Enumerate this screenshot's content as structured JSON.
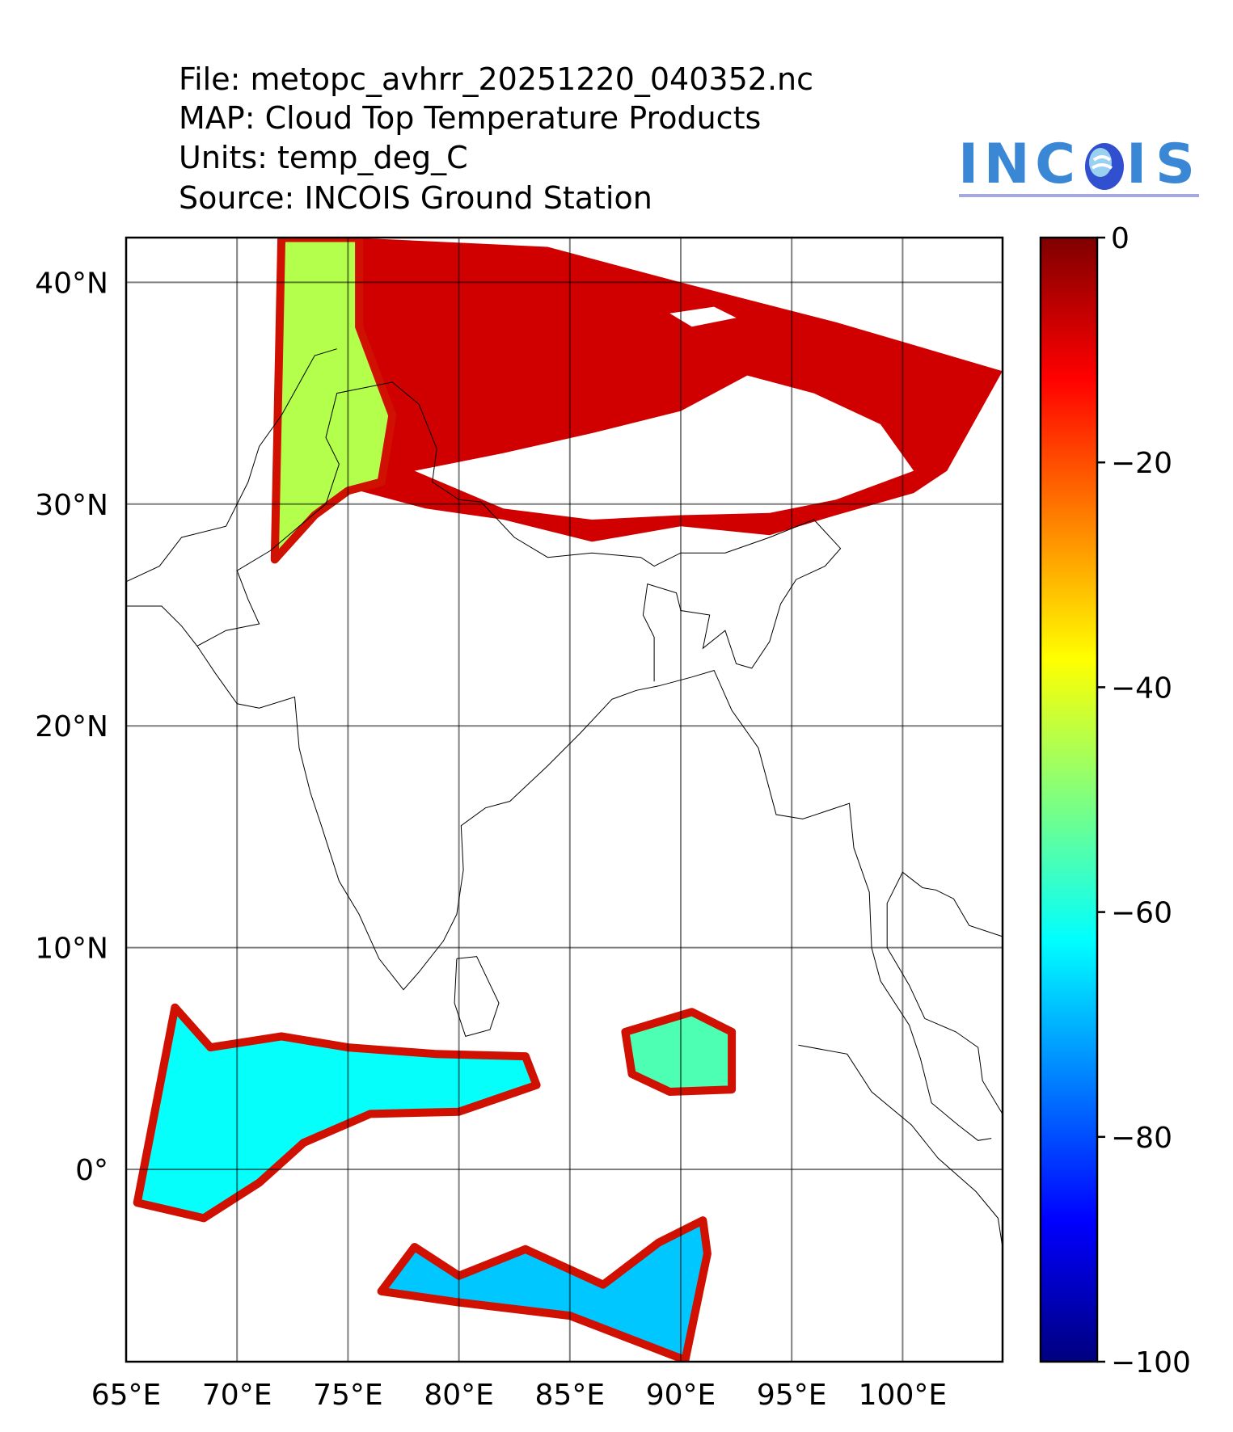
{
  "header": {
    "file": "File: metopc_avhrr_20251220_040352.nc",
    "map": "MAP: Cloud Top Temperature Products",
    "units": "Units: temp_deg_C",
    "source": "Source: INCOIS Ground Station"
  },
  "logo": {
    "text": "INCOIS",
    "color": "#3a87d6"
  },
  "chart_data": {
    "type": "heatmap",
    "title": "Cloud Top Temperature Products",
    "units": "temp_deg_C",
    "lon_range": [
      65,
      104.5
    ],
    "lat_range": [
      -8.7,
      42
    ],
    "lon_ticks": [
      65,
      70,
      75,
      80,
      85,
      90,
      95,
      100
    ],
    "lon_tick_labels": [
      "65°E",
      "70°E",
      "75°E",
      "80°E",
      "85°E",
      "90°E",
      "95°E",
      "100°E"
    ],
    "lat_ticks": [
      0,
      10,
      20,
      30,
      40
    ],
    "lat_tick_labels": [
      "0°",
      "10°N",
      "20°N",
      "30°N",
      "40°N"
    ],
    "grid": true,
    "colorbar": {
      "range": [
        -100,
        0
      ],
      "ticks": [
        0,
        -20,
        -40,
        -60,
        -80,
        -100
      ],
      "tick_labels": [
        "0",
        "−20",
        "−40",
        "−60",
        "−80",
        "−100"
      ],
      "colormap": "jet",
      "placement": "right"
    },
    "cloud_regions": [
      {
        "name": "north-swath-warm",
        "temp": -8,
        "poly": [
          [
            75.5,
            42
          ],
          [
            84,
            41.6
          ],
          [
            90,
            40
          ],
          [
            97,
            38.2
          ],
          [
            104.5,
            36
          ],
          [
            102,
            31.5
          ],
          [
            100.5,
            30.5
          ],
          [
            97,
            29.5
          ],
          [
            94,
            28.6
          ],
          [
            90,
            29
          ],
          [
            86,
            28.3
          ],
          [
            82,
            29.3
          ],
          [
            78.5,
            29.8
          ],
          [
            75.5,
            30.6
          ]
        ]
      },
      {
        "name": "north-swath-cold-edge",
        "temp": -45,
        "poly": [
          [
            72,
            42
          ],
          [
            75.5,
            42
          ],
          [
            75.5,
            38
          ],
          [
            77,
            34
          ],
          [
            76.5,
            31
          ],
          [
            75,
            30.6
          ],
          [
            73.5,
            29.5
          ],
          [
            71.7,
            27.5
          ]
        ]
      },
      {
        "name": "indian-ocean-west",
        "temp": -62,
        "poly": [
          [
            67.2,
            7.3
          ],
          [
            68.8,
            5.5
          ],
          [
            72,
            6
          ],
          [
            75,
            5.5
          ],
          [
            79,
            5.2
          ],
          [
            83,
            5.1
          ],
          [
            83.5,
            3.8
          ],
          [
            80,
            2.6
          ],
          [
            76,
            2.5
          ],
          [
            73,
            1.2
          ],
          [
            71,
            -0.6
          ],
          [
            68.5,
            -2.2
          ],
          [
            65.5,
            -1.5
          ]
        ]
      },
      {
        "name": "indian-ocean-east",
        "temp": -55,
        "poly": [
          [
            87.5,
            6.2
          ],
          [
            90.5,
            7.1
          ],
          [
            92.3,
            6.2
          ],
          [
            92.3,
            3.6
          ],
          [
            89.5,
            3.5
          ],
          [
            87.8,
            4.3
          ]
        ]
      },
      {
        "name": "indian-ocean-south",
        "temp": -68,
        "poly": [
          [
            76.5,
            -5.5
          ],
          [
            78,
            -3.5
          ],
          [
            80,
            -4.8
          ],
          [
            83,
            -3.6
          ],
          [
            86.5,
            -5.2
          ],
          [
            89,
            -3.3
          ],
          [
            91,
            -2.3
          ],
          [
            91.2,
            -3.8
          ],
          [
            90.2,
            -8.6
          ],
          [
            85,
            -6.6
          ],
          [
            80,
            -6
          ]
        ]
      }
    ],
    "clear_regions": [
      {
        "name": "tibet-clear",
        "poly": [
          [
            78,
            31.5
          ],
          [
            82,
            32.3
          ],
          [
            86,
            33.2
          ],
          [
            90,
            34.2
          ],
          [
            93,
            35.8
          ],
          [
            96,
            35
          ],
          [
            99,
            33.6
          ],
          [
            100.5,
            31.5
          ],
          [
            97,
            30.2
          ],
          [
            94,
            29.6
          ],
          [
            90,
            29.5
          ],
          [
            86,
            29.3
          ],
          [
            82,
            29.8
          ]
        ]
      },
      {
        "name": "qaidam-clear",
        "poly": [
          [
            89.5,
            38.6
          ],
          [
            91.5,
            38.9
          ],
          [
            92.5,
            38.4
          ],
          [
            90.5,
            38
          ]
        ]
      }
    ],
    "coastlines": [
      [
        [
          65,
          25.4
        ],
        [
          66.6,
          25.4
        ],
        [
          67.5,
          24.5
        ],
        [
          68.2,
          23.6
        ],
        [
          69,
          22.4
        ],
        [
          70,
          21
        ],
        [
          71,
          20.8
        ],
        [
          72.6,
          21.3
        ],
        [
          72.8,
          19
        ],
        [
          73.3,
          17
        ],
        [
          73.8,
          15.5
        ],
        [
          74.6,
          13
        ],
        [
          75.5,
          11.5
        ],
        [
          76.4,
          9.5
        ],
        [
          77.5,
          8.1
        ],
        [
          78.2,
          8.9
        ],
        [
          79.3,
          10.3
        ],
        [
          79.9,
          11.5
        ],
        [
          80.2,
          13.5
        ],
        [
          80.1,
          15.5
        ],
        [
          81.2,
          16.3
        ],
        [
          82.3,
          16.6
        ],
        [
          84,
          18.2
        ],
        [
          85.5,
          19.7
        ],
        [
          86.9,
          21.2
        ],
        [
          88,
          21.6
        ],
        [
          89,
          21.8
        ],
        [
          90.5,
          22.2
        ],
        [
          91.5,
          22.5
        ],
        [
          92.3,
          20.7
        ],
        [
          93.5,
          19
        ],
        [
          94.3,
          16
        ],
        [
          95.5,
          15.8
        ],
        [
          97.6,
          16.5
        ],
        [
          97.8,
          14.5
        ],
        [
          98.5,
          12.5
        ],
        [
          98.6,
          10
        ],
        [
          99,
          8.5
        ],
        [
          100.3,
          6.5
        ],
        [
          100.8,
          5
        ],
        [
          101.3,
          3
        ],
        [
          102.5,
          2
        ],
        [
          103.4,
          1.3
        ],
        [
          104,
          1.4
        ]
      ],
      [
        [
          79.9,
          9.5
        ],
        [
          80.8,
          9.6
        ],
        [
          81.8,
          7.5
        ],
        [
          81.4,
          6.3
        ],
        [
          80.3,
          6
        ],
        [
          79.8,
          7.5
        ],
        [
          79.9,
          9.5
        ]
      ],
      [
        [
          95.3,
          5.6
        ],
        [
          97.5,
          5.2
        ],
        [
          98.6,
          3.5
        ],
        [
          100.4,
          2
        ],
        [
          101.6,
          0.5
        ],
        [
          103.3,
          -1
        ],
        [
          104.3,
          -2.2
        ],
        [
          104.5,
          -3.5
        ]
      ],
      [
        [
          104.5,
          2.5
        ],
        [
          103.6,
          4
        ],
        [
          103.4,
          5.5
        ],
        [
          102.4,
          6.2
        ],
        [
          101,
          6.8
        ],
        [
          100.3,
          8.3
        ],
        [
          99.3,
          10
        ],
        [
          99.3,
          12
        ],
        [
          100,
          13.4
        ],
        [
          100.9,
          12.7
        ],
        [
          101.5,
          12.6
        ],
        [
          102.3,
          12.2
        ],
        [
          103,
          11
        ],
        [
          104.5,
          10.5
        ]
      ]
    ],
    "borders": [
      [
        [
          68.2,
          23.6
        ],
        [
          69.5,
          24.3
        ],
        [
          71,
          24.6
        ],
        [
          70.5,
          25.7
        ],
        [
          70,
          27
        ],
        [
          71.5,
          27.9
        ],
        [
          72.8,
          29
        ],
        [
          74,
          30
        ],
        [
          74.6,
          31.8
        ],
        [
          74,
          33
        ],
        [
          74.5,
          35
        ],
        [
          77,
          35.5
        ],
        [
          78.2,
          34.5
        ],
        [
          79,
          32.5
        ],
        [
          78.8,
          31
        ],
        [
          80,
          30.2
        ],
        [
          81,
          30.1
        ],
        [
          82.5,
          28.5
        ],
        [
          84,
          27.6
        ],
        [
          86,
          27.8
        ],
        [
          88.2,
          27.6
        ],
        [
          88.8,
          27.2
        ],
        [
          90,
          27.8
        ],
        [
          92,
          27.8
        ],
        [
          94,
          28.5
        ],
        [
          96,
          29.3
        ],
        [
          97.2,
          28
        ],
        [
          96.5,
          27.2
        ],
        [
          95.2,
          26.6
        ],
        [
          94.5,
          25.5
        ],
        [
          94,
          23.8
        ],
        [
          93.2,
          22.6
        ],
        [
          92.5,
          22.8
        ],
        [
          92,
          24.3
        ],
        [
          91,
          23.5
        ],
        [
          91.3,
          25
        ],
        [
          90,
          25.2
        ],
        [
          89.8,
          26
        ],
        [
          88.5,
          26.4
        ],
        [
          88.3,
          25
        ],
        [
          88.8,
          24
        ],
        [
          88.8,
          22
        ]
      ],
      [
        [
          61,
          25
        ],
        [
          63,
          26
        ],
        [
          65,
          26.5
        ],
        [
          66.5,
          27.2
        ],
        [
          67.5,
          28.5
        ],
        [
          69.5,
          29
        ],
        [
          70.5,
          31
        ],
        [
          71,
          32.6
        ],
        [
          72,
          34
        ],
        [
          73.5,
          36.7
        ],
        [
          74.5,
          37
        ]
      ]
    ]
  }
}
